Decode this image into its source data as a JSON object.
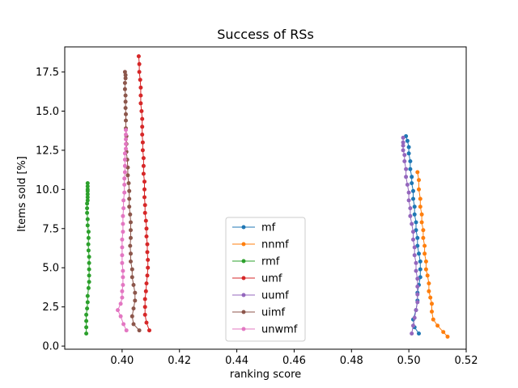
{
  "chart_data": {
    "type": "scatter",
    "title": "Success of RSs",
    "xlabel": "ranking score",
    "ylabel": "Items sold [%]",
    "xlim": [
      0.38,
      0.52
    ],
    "ylim": [
      -0.2,
      19.1
    ],
    "xticks": [
      "0.40",
      "0.42",
      "0.44",
      "0.46",
      "0.48",
      "0.50",
      "0.52"
    ],
    "yticks": [
      "0.0",
      "2.5",
      "5.0",
      "7.5",
      "10.0",
      "12.5",
      "15.0",
      "17.5"
    ],
    "xtick_values": [
      0.4,
      0.42,
      0.44,
      0.46,
      0.48,
      0.5,
      0.52
    ],
    "ytick_values": [
      0.0,
      2.5,
      5.0,
      7.5,
      10.0,
      12.5,
      15.0,
      17.5
    ],
    "grid": false,
    "legend_position": "bottom-center",
    "series": [
      {
        "name": "mf",
        "color": "#1f77b4",
        "x": [
          0.5035,
          0.502,
          0.5015,
          0.5025,
          0.503,
          0.503,
          0.5035,
          0.504,
          0.504,
          0.504,
          0.5035,
          0.503,
          0.503,
          0.5025,
          0.5025,
          0.502,
          0.502,
          0.5015,
          0.5015,
          0.501,
          0.501,
          0.5005,
          0.5005,
          0.5,
          0.5,
          0.4995,
          0.499
        ],
        "y": [
          0.8,
          1.2,
          1.7,
          2.3,
          2.9,
          3.4,
          3.9,
          4.4,
          4.9,
          5.4,
          5.9,
          6.4,
          6.9,
          7.4,
          7.9,
          8.4,
          8.9,
          9.4,
          9.9,
          10.4,
          10.8,
          11.3,
          11.8,
          12.3,
          12.7,
          13.1,
          13.4
        ]
      },
      {
        "name": "nnmf",
        "color": "#ff7f0e",
        "x": [
          0.5135,
          0.512,
          0.51,
          0.5085,
          0.508,
          0.508,
          0.5075,
          0.507,
          0.507,
          0.5065,
          0.506,
          0.506,
          0.5055,
          0.5055,
          0.505,
          0.505,
          0.5045,
          0.5045,
          0.504,
          0.504,
          0.5035,
          0.5035,
          0.503
        ],
        "y": [
          0.6,
          0.9,
          1.3,
          1.7,
          2.2,
          2.7,
          3.1,
          3.5,
          4.0,
          4.5,
          4.9,
          5.4,
          5.9,
          6.4,
          6.9,
          7.4,
          7.9,
          8.4,
          8.9,
          9.4,
          10.0,
          10.6,
          11.1
        ]
      },
      {
        "name": "rmf",
        "color": "#2ca02c",
        "x": [
          0.3875,
          0.3875,
          0.3875,
          0.3875,
          0.3878,
          0.388,
          0.388,
          0.3883,
          0.3885,
          0.3885,
          0.3885,
          0.3885,
          0.3885,
          0.3883,
          0.3882,
          0.3883,
          0.3883,
          0.388,
          0.388,
          0.3878,
          0.3878,
          0.3878,
          0.388,
          0.388,
          0.388,
          0.388,
          0.388,
          0.388,
          0.388
        ],
        "y": [
          0.8,
          1.2,
          1.6,
          2.0,
          2.4,
          2.8,
          3.2,
          3.7,
          4.1,
          4.5,
          4.9,
          5.3,
          5.7,
          6.1,
          6.5,
          6.9,
          7.3,
          7.7,
          8.1,
          8.5,
          8.8,
          9.1,
          9.3,
          9.5,
          9.7,
          9.9,
          10.0,
          10.2,
          10.4
        ]
      },
      {
        "name": "umf",
        "color": "#d62728",
        "x": [
          0.4095,
          0.4085,
          0.408,
          0.408,
          0.408,
          0.4083,
          0.4085,
          0.4088,
          0.409,
          0.409,
          0.4088,
          0.4088,
          0.4085,
          0.4085,
          0.4083,
          0.408,
          0.408,
          0.4078,
          0.4078,
          0.4078,
          0.4075,
          0.4075,
          0.4075,
          0.4072,
          0.4072,
          0.407,
          0.407,
          0.407,
          0.4068,
          0.4065,
          0.4065,
          0.4065,
          0.4063,
          0.406,
          0.406,
          0.4058
        ],
        "y": [
          1.0,
          1.5,
          2.0,
          2.5,
          3.0,
          3.5,
          4.0,
          4.5,
          5.0,
          5.5,
          6.0,
          6.5,
          7.0,
          7.5,
          8.0,
          8.5,
          9.0,
          9.5,
          10.0,
          10.5,
          11.0,
          11.5,
          12.0,
          12.5,
          13.0,
          13.5,
          14.0,
          14.5,
          15.0,
          15.5,
          16.0,
          16.5,
          17.0,
          17.5,
          18.0,
          18.5
        ]
      },
      {
        "name": "uumf",
        "color": "#9467bd",
        "x": [
          0.501,
          0.5015,
          0.502,
          0.5025,
          0.503,
          0.503,
          0.503,
          0.503,
          0.5025,
          0.5025,
          0.502,
          0.502,
          0.5015,
          0.5015,
          0.501,
          0.5005,
          0.5005,
          0.5,
          0.5,
          0.4995,
          0.499,
          0.499,
          0.4985,
          0.4985,
          0.498,
          0.498,
          0.498,
          0.498
        ],
        "y": [
          0.8,
          1.3,
          1.8,
          2.3,
          2.8,
          3.3,
          3.8,
          4.3,
          4.8,
          5.3,
          5.8,
          6.3,
          6.8,
          7.3,
          7.8,
          8.3,
          8.8,
          9.3,
          9.8,
          10.3,
          10.8,
          11.3,
          11.8,
          12.2,
          12.5,
          12.8,
          13.0,
          13.3
        ]
      },
      {
        "name": "uimf",
        "color": "#8c564b",
        "x": [
          0.406,
          0.404,
          0.4035,
          0.404,
          0.4045,
          0.4045,
          0.404,
          0.4035,
          0.4035,
          0.403,
          0.403,
          0.4028,
          0.403,
          0.403,
          0.403,
          0.4028,
          0.4025,
          0.4025,
          0.4025,
          0.4023,
          0.402,
          0.402,
          0.4018,
          0.4015,
          0.4015,
          0.4015,
          0.4013,
          0.4013,
          0.4013,
          0.4012,
          0.4012,
          0.4012,
          0.401,
          0.401,
          0.4012,
          0.4012,
          0.401
        ],
        "y": [
          1.0,
          1.4,
          1.9,
          2.4,
          2.9,
          3.4,
          3.9,
          4.4,
          4.9,
          5.4,
          5.9,
          6.4,
          6.9,
          7.4,
          7.9,
          8.4,
          8.9,
          9.4,
          9.9,
          10.4,
          10.9,
          11.4,
          11.9,
          12.4,
          12.9,
          13.4,
          13.9,
          14.4,
          14.8,
          15.2,
          15.6,
          16.0,
          16.4,
          16.8,
          17.1,
          17.3,
          17.5
        ]
      },
      {
        "name": "unwmf",
        "color": "#e377c2",
        "x": [
          0.4015,
          0.4005,
          0.3995,
          0.3985,
          0.3995,
          0.4,
          0.4,
          0.4003,
          0.4003,
          0.4003,
          0.4,
          0.4,
          0.4,
          0.4,
          0.4003,
          0.4003,
          0.4003,
          0.4005,
          0.4005,
          0.4008,
          0.4008,
          0.4008,
          0.401,
          0.401,
          0.401,
          0.401,
          0.4013,
          0.4013,
          0.4013,
          0.4013,
          0.4013
        ],
        "y": [
          1.0,
          1.4,
          1.9,
          2.3,
          2.7,
          3.1,
          3.5,
          3.9,
          4.4,
          4.8,
          5.3,
          5.8,
          6.3,
          6.8,
          7.3,
          7.8,
          8.3,
          8.8,
          9.3,
          9.8,
          10.3,
          10.7,
          11.1,
          11.5,
          11.9,
          12.3,
          12.6,
          12.9,
          13.2,
          13.5,
          13.8
        ]
      }
    ]
  }
}
